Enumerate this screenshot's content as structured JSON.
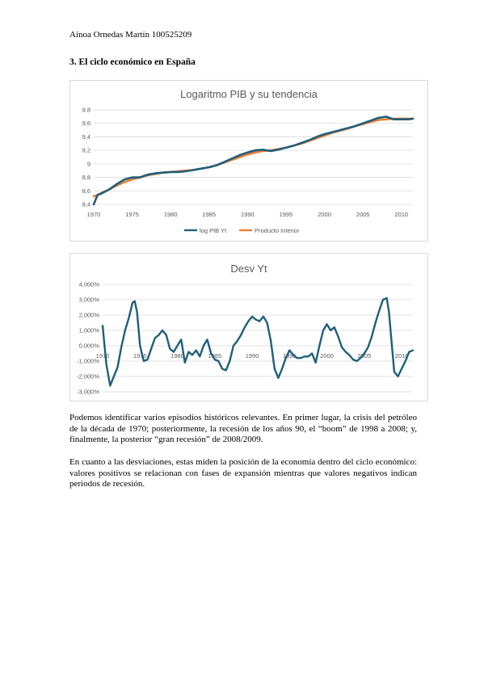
{
  "header": {
    "author": "Ainoa Ornedas Martín 100525209"
  },
  "section": {
    "title": "3. El ciclo económico en España"
  },
  "paragraphs": [
    "Podemos identificar varios episodios históricos relevantes. En primer lugar, la crisis del petróleo de la década de 1970; posteriormente, la recesión de los años 90, el “boom” de 1998 a 2008; y, finalmente, la posterior “gran recesión” de 2008/2009.",
    "En cuanto a las desviaciones, estas miden la posición de la economía dentro del ciclo económico: valores positivos se relacionan con fases de expansión mientras que valores negativos indican periodos de recesión."
  ],
  "chart_data": [
    {
      "type": "line",
      "title": "Logaritmo PIB y su tendencia",
      "xlabel": "",
      "ylabel": "",
      "xlim": [
        1970,
        2011.5
      ],
      "ylim": [
        8.4,
        9.8
      ],
      "x_ticks": [
        "1970",
        "1975",
        "1980",
        "1985",
        "1990",
        "1995",
        "2000",
        "2005",
        "2010"
      ],
      "y_ticks": [
        "8,4",
        "8,6",
        "8,8",
        "9",
        "9,2",
        "9,4",
        "9,6",
        "9,8"
      ],
      "grid": true,
      "legend": "bottom",
      "colors": {
        "series1": "#1f5f7a",
        "series2": "#ed7d31"
      },
      "x": [
        1970.0,
        1970.5,
        1971,
        1972,
        1973,
        1974,
        1975,
        1976,
        1977,
        1978,
        1979,
        1980,
        1981,
        1982,
        1983,
        1984,
        1985,
        1986,
        1987,
        1988,
        1989,
        1990,
        1991,
        1992,
        1993,
        1994,
        1995,
        1996,
        1997,
        1998,
        1999,
        2000,
        2001,
        2002,
        2003,
        2004,
        2005,
        2006,
        2007,
        2008,
        2009,
        2010,
        2011,
        2011.5
      ],
      "series": [
        {
          "name": "log PIB Yt",
          "values": [
            8.4,
            8.54,
            8.56,
            8.62,
            8.7,
            8.77,
            8.8,
            8.8,
            8.84,
            8.86,
            8.87,
            8.88,
            8.88,
            8.89,
            8.91,
            8.93,
            8.95,
            8.98,
            9.03,
            9.08,
            9.13,
            9.17,
            9.2,
            9.21,
            9.19,
            9.21,
            9.24,
            9.27,
            9.31,
            9.35,
            9.4,
            9.44,
            9.47,
            9.5,
            9.53,
            9.56,
            9.6,
            9.64,
            9.68,
            9.7,
            9.66,
            9.66,
            9.66,
            9.67
          ]
        },
        {
          "name": "Producto Interior",
          "values": [
            8.52,
            8.54,
            8.57,
            8.62,
            8.68,
            8.73,
            8.77,
            8.8,
            8.83,
            8.85,
            8.87,
            8.88,
            8.89,
            8.9,
            8.91,
            8.93,
            8.95,
            8.98,
            9.02,
            9.06,
            9.1,
            9.14,
            9.17,
            9.19,
            9.2,
            9.22,
            9.24,
            9.27,
            9.3,
            9.34,
            9.38,
            9.42,
            9.46,
            9.49,
            9.52,
            9.56,
            9.59,
            9.62,
            9.65,
            9.66,
            9.67,
            9.67,
            9.67,
            9.67
          ]
        }
      ]
    },
    {
      "type": "line",
      "title": "Desv Yt",
      "xlabel": "",
      "ylabel": "",
      "xlim": [
        1970,
        2011.5
      ],
      "ylim": [
        -3.0,
        4.0
      ],
      "x_ticks": [
        "1970",
        "1975",
        "1980",
        "1985",
        "1990",
        "1995",
        "2000",
        "2005",
        "2010"
      ],
      "y_ticks": [
        "-3,000%",
        "-2,000%",
        "-1,000%",
        "0,000%",
        "1,000%",
        "2,000%",
        "3,000%",
        "4,000%"
      ],
      "grid": true,
      "colors": {
        "series1": "#1f5f7a"
      },
      "x": [
        1970.0,
        1970.5,
        1971.0,
        1971.5,
        1972.0,
        1972.5,
        1973.0,
        1973.5,
        1974.0,
        1974.3,
        1974.6,
        1975.0,
        1975.5,
        1976.0,
        1976.5,
        1977.0,
        1977.5,
        1978.0,
        1978.5,
        1979.0,
        1979.5,
        1980.0,
        1980.5,
        1981.0,
        1981.5,
        1982.0,
        1982.5,
        1983.0,
        1983.5,
        1984.0,
        1984.5,
        1985.0,
        1985.5,
        1986.0,
        1986.5,
        1987.0,
        1987.5,
        1988.0,
        1988.5,
        1989.0,
        1989.5,
        1990.0,
        1990.5,
        1991.0,
        1991.5,
        1992.0,
        1992.5,
        1993.0,
        1993.5,
        1994.0,
        1994.5,
        1995.0,
        1995.5,
        1996.0,
        1996.5,
        1997.0,
        1997.5,
        1998.0,
        1998.5,
        1999.0,
        1999.5,
        2000.0,
        2000.5,
        2001.0,
        2001.5,
        2002.0,
        2002.5,
        2003.0,
        2003.5,
        2004.0,
        2004.5,
        2005.0,
        2005.5,
        2006.0,
        2006.5,
        2007.0,
        2007.5,
        2008.0,
        2008.3,
        2008.6,
        2009.0,
        2009.5,
        2010.0,
        2010.5,
        2011.0,
        2011.5
      ],
      "series": [
        {
          "name": "",
          "values": [
            1.3,
            -1.2,
            -2.6,
            -2.0,
            -1.4,
            -0.1,
            1.0,
            1.8,
            2.8,
            2.9,
            2.2,
            0.0,
            -1.0,
            -0.9,
            -0.2,
            0.5,
            0.7,
            1.0,
            0.7,
            -0.2,
            -0.4,
            0.0,
            0.4,
            -1.1,
            -0.4,
            -0.6,
            -0.3,
            -0.7,
            0.0,
            0.4,
            -0.5,
            -0.9,
            -1.0,
            -1.5,
            -1.6,
            -1.0,
            0.0,
            0.3,
            0.7,
            1.2,
            1.6,
            1.9,
            1.7,
            1.6,
            1.9,
            1.5,
            0.3,
            -1.5,
            -2.1,
            -1.5,
            -0.8,
            -0.3,
            -0.6,
            -0.8,
            -0.8,
            -0.7,
            -0.7,
            -0.5,
            -1.1,
            0.0,
            1.0,
            1.4,
            1.0,
            1.2,
            0.6,
            -0.1,
            -0.4,
            -0.6,
            -0.9,
            -1.0,
            -0.8,
            -0.5,
            -0.1,
            0.6,
            1.5,
            2.3,
            3.0,
            3.1,
            2.2,
            0.5,
            -1.7,
            -2.0,
            -1.5,
            -1.0,
            -0.4,
            -0.3
          ]
        }
      ]
    }
  ]
}
